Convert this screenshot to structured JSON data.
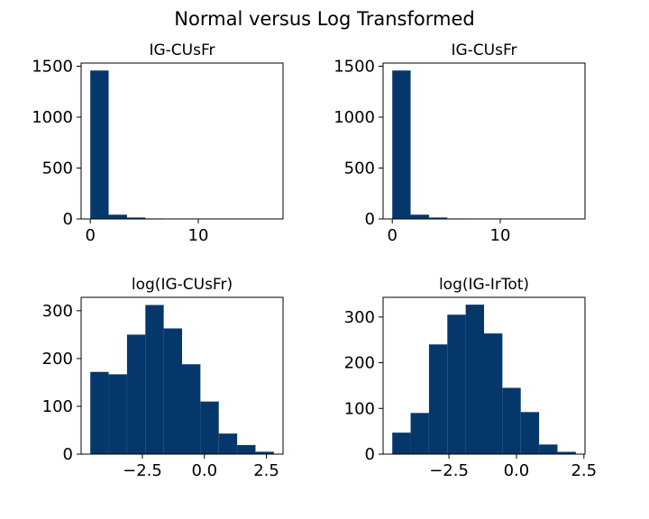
{
  "figure": {
    "suptitle": "Normal versus Log Transformed",
    "bar_color": "#06376b"
  },
  "chart_data": [
    {
      "type": "bar",
      "subtype": "histogram",
      "title": "IG-CUsFr",
      "xlabel": "",
      "ylabel": "",
      "bin_edges": [
        0,
        1.7,
        3.4,
        5.1,
        6.8,
        8.5,
        10.2,
        11.9,
        13.6,
        15.3,
        17.0
      ],
      "values": [
        1458,
        42,
        14,
        5,
        3,
        1,
        1,
        0,
        0,
        1
      ],
      "xlim": [
        -0.85,
        17.85
      ],
      "ylim": [
        0,
        1531
      ],
      "xticks": [
        0,
        10
      ],
      "xtick_labels": [
        "0",
        "10"
      ],
      "yticks": [
        0,
        500,
        1000,
        1500
      ],
      "ytick_labels": [
        "0",
        "500",
        "1000",
        "1500"
      ]
    },
    {
      "type": "bar",
      "subtype": "histogram",
      "title": "IG-CUsFr",
      "xlabel": "",
      "ylabel": "",
      "bin_edges": [
        0,
        1.7,
        3.4,
        5.1,
        6.8,
        8.5,
        10.2,
        11.9,
        13.6,
        15.3,
        17.0
      ],
      "values": [
        1458,
        42,
        14,
        5,
        3,
        1,
        1,
        0,
        0,
        1
      ],
      "xlim": [
        -0.85,
        17.85
      ],
      "ylim": [
        0,
        1531
      ],
      "xticks": [
        0,
        10
      ],
      "xtick_labels": [
        "0",
        "10"
      ],
      "yticks": [
        0,
        500,
        1000,
        1500
      ],
      "ytick_labels": [
        "0",
        "500",
        "1000",
        "1500"
      ]
    },
    {
      "type": "bar",
      "subtype": "histogram",
      "title": "log(IG-CUsFr)",
      "xlabel": "",
      "ylabel": "",
      "bin_edges": [
        -4.6,
        -3.86,
        -3.12,
        -2.38,
        -1.64,
        -0.9,
        -0.16,
        0.58,
        1.32,
        2.06,
        2.8
      ],
      "values": [
        172,
        167,
        250,
        312,
        263,
        188,
        110,
        43,
        19,
        5
      ],
      "xlim": [
        -4.97,
        3.17
      ],
      "ylim": [
        0,
        328
      ],
      "xticks": [
        -2.5,
        0.0,
        2.5
      ],
      "xtick_labels": [
        "−2.5",
        "0.0",
        "2.5"
      ],
      "yticks": [
        0,
        100,
        200,
        300
      ],
      "ytick_labels": [
        "0",
        "100",
        "200",
        "300"
      ]
    },
    {
      "type": "bar",
      "subtype": "histogram",
      "title": "log(IG-IrTot)",
      "xlabel": "",
      "ylabel": "",
      "bin_edges": [
        -4.6,
        -3.92,
        -3.24,
        -2.56,
        -1.88,
        -1.2,
        -0.52,
        0.16,
        0.84,
        1.52,
        2.2
      ],
      "values": [
        47,
        90,
        240,
        305,
        327,
        264,
        145,
        92,
        21,
        5
      ],
      "xlim": [
        -4.94,
        2.54
      ],
      "ylim": [
        0,
        343
      ],
      "xticks": [
        -2.5,
        0.0,
        2.5
      ],
      "xtick_labels": [
        "−2.5",
        "0.0",
        "2.5"
      ],
      "yticks": [
        0,
        100,
        200,
        300
      ],
      "ytick_labels": [
        "0",
        "100",
        "200",
        "300"
      ]
    }
  ]
}
